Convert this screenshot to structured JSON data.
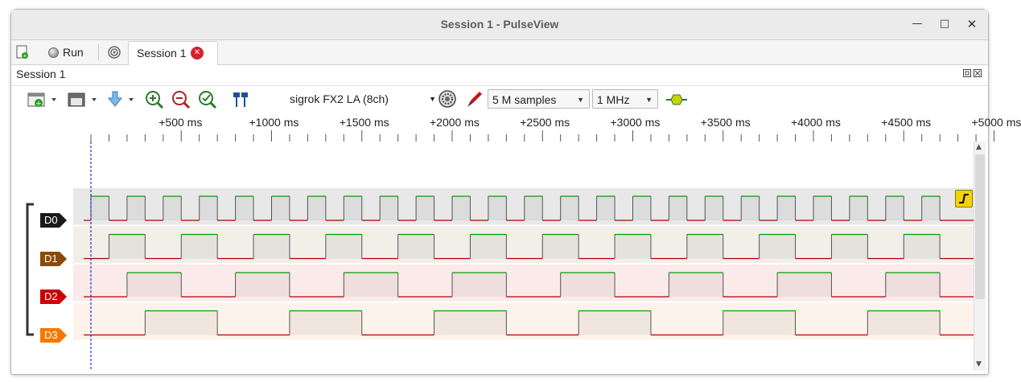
{
  "window": {
    "title": "Session 1 - PulseView"
  },
  "tabbar": {
    "run_label": "Run",
    "session_tab": "Session 1"
  },
  "session": {
    "label": "Session 1"
  },
  "toolbar": {
    "device": "sigrok FX2 LA (8ch)",
    "samples": "5 M samples",
    "samplerate": "1 MHz"
  },
  "ruler": {
    "labels": [
      "+500 ms",
      "+1000 ms",
      "+1500 ms",
      "+2000 ms",
      "+2500 ms",
      "+3000 ms",
      "+3500 ms",
      "+4000 ms",
      "+4500 ms",
      "+5000 ms"
    ]
  },
  "channels": [
    {
      "name": "D0",
      "color": "#1a1a1a",
      "row_bg": "#e8e8e8",
      "period_ms": 200,
      "first_rise_ms": 0
    },
    {
      "name": "D1",
      "color": "#8b4a05",
      "row_bg": "#f2eee8",
      "period_ms": 400,
      "first_rise_ms": 100
    },
    {
      "name": "D2",
      "color": "#cc0000",
      "row_bg": "#fbeaea",
      "period_ms": 600,
      "first_rise_ms": 200
    },
    {
      "name": "D3",
      "color": "#f57900",
      "row_bg": "#fdf3ea",
      "period_ms": 800,
      "first_rise_ms": 300
    }
  ],
  "trigger": {
    "channel": "D0",
    "type": "rising-edge"
  },
  "colors": {
    "signal_high": "#00a000",
    "signal_low": "#b00000",
    "cursor": "#0000cc"
  }
}
